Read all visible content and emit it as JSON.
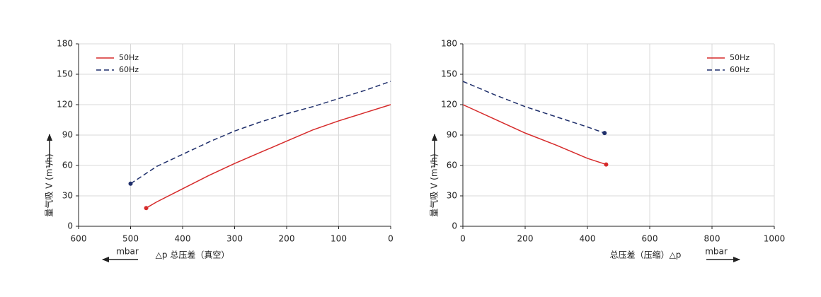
{
  "chart_data": [
    {
      "type": "line",
      "xlim": [
        600,
        0
      ],
      "ylim": [
        0,
        180
      ],
      "xticks": [
        600,
        500,
        400,
        300,
        200,
        100,
        0
      ],
      "yticks": [
        0,
        30,
        60,
        90,
        120,
        150,
        180
      ],
      "grid": true,
      "legend": "upper-left",
      "ylabel": "量气吸 V (m³/h)",
      "xlabel": "△p 总压差（真空）",
      "xunit": "mbar",
      "series": [
        {
          "name": "50Hz",
          "color": "#d62b2b",
          "style": "solid",
          "x": [
            470,
            450,
            400,
            350,
            300,
            250,
            200,
            150,
            100,
            50,
            0
          ],
          "values": [
            18,
            24,
            37,
            50,
            62,
            73,
            84,
            95,
            104,
            112,
            120
          ]
        },
        {
          "name": "60Hz",
          "color": "#1f2f6b",
          "style": "dashed",
          "x": [
            500,
            450,
            400,
            350,
            300,
            250,
            200,
            150,
            100,
            50,
            0
          ],
          "values": [
            42,
            59,
            71,
            83,
            94,
            103,
            111,
            118,
            126,
            134,
            143
          ]
        }
      ]
    },
    {
      "type": "line",
      "xlim": [
        0,
        1000
      ],
      "ylim": [
        0,
        180
      ],
      "xticks": [
        0,
        200,
        400,
        600,
        800,
        1000
      ],
      "yticks": [
        0,
        30,
        60,
        90,
        120,
        150,
        180
      ],
      "grid": true,
      "legend": "upper-right",
      "ylabel": "量气吸 V (m³/h)",
      "xlabel": "总压差（压缩）△p",
      "xunit": "mbar",
      "series": [
        {
          "name": "50Hz",
          "color": "#d62b2b",
          "style": "solid",
          "x": [
            0,
            100,
            200,
            300,
            400,
            460
          ],
          "values": [
            120,
            106,
            92,
            80,
            67,
            61
          ]
        },
        {
          "name": "60Hz",
          "color": "#1f2f6b",
          "style": "dashed",
          "x": [
            0,
            100,
            200,
            300,
            400,
            455
          ],
          "values": [
            143,
            130,
            118,
            108,
            98,
            92
          ]
        }
      ]
    }
  ]
}
